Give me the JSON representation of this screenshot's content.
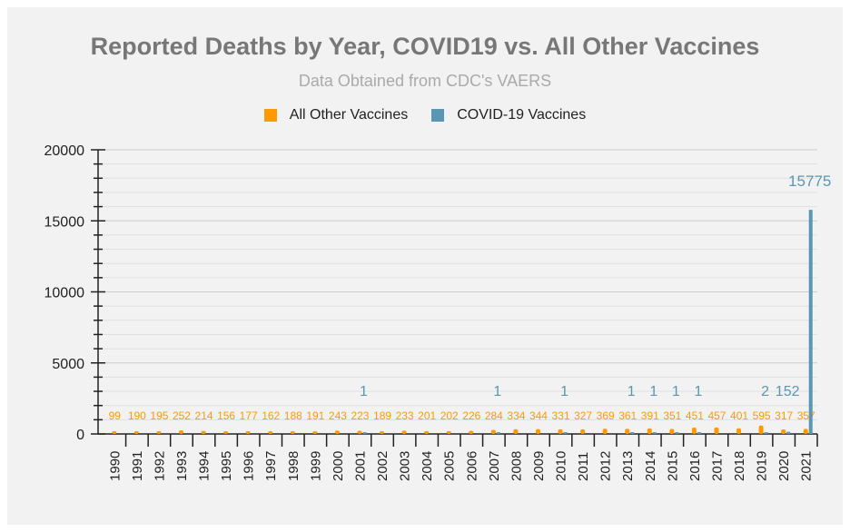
{
  "chart_data": {
    "type": "bar",
    "title": "Reported Deaths by Year, COVID19 vs. All Other Vaccines",
    "subtitle": "Data Obtained from CDC's VAERS",
    "xlabel": "",
    "ylabel": "",
    "ylim": [
      0,
      20000
    ],
    "yticks": [
      "0",
      "5000",
      "10000",
      "15000",
      "20000"
    ],
    "grid": true,
    "legend_position": "top",
    "categories": [
      "1990",
      "1991",
      "1992",
      "1993",
      "1994",
      "1995",
      "1996",
      "1997",
      "1998",
      "1999",
      "2000",
      "2001",
      "2002",
      "2003",
      "2004",
      "2005",
      "2006",
      "2007",
      "2008",
      "2009",
      "2010",
      "2011",
      "2012",
      "2013",
      "2014",
      "2015",
      "2016",
      "2017",
      "2018",
      "2019",
      "2020",
      "2021"
    ],
    "series": [
      {
        "name": "All Other Vaccines",
        "color": "#ff9900",
        "values": [
          99,
          190,
          195,
          252,
          214,
          156,
          177,
          162,
          188,
          191,
          243,
          223,
          189,
          233,
          201,
          202,
          226,
          284,
          334,
          344,
          331,
          327,
          369,
          361,
          391,
          351,
          451,
          457,
          401,
          595,
          317,
          357
        ]
      },
      {
        "name": "COVID-19 Vaccines",
        "color": "#5b96b2",
        "values": [
          null,
          null,
          null,
          null,
          null,
          null,
          null,
          null,
          null,
          null,
          null,
          1,
          null,
          null,
          null,
          null,
          null,
          1,
          null,
          null,
          1,
          null,
          null,
          1,
          1,
          1,
          1,
          null,
          null,
          2,
          152,
          15775
        ]
      }
    ]
  }
}
